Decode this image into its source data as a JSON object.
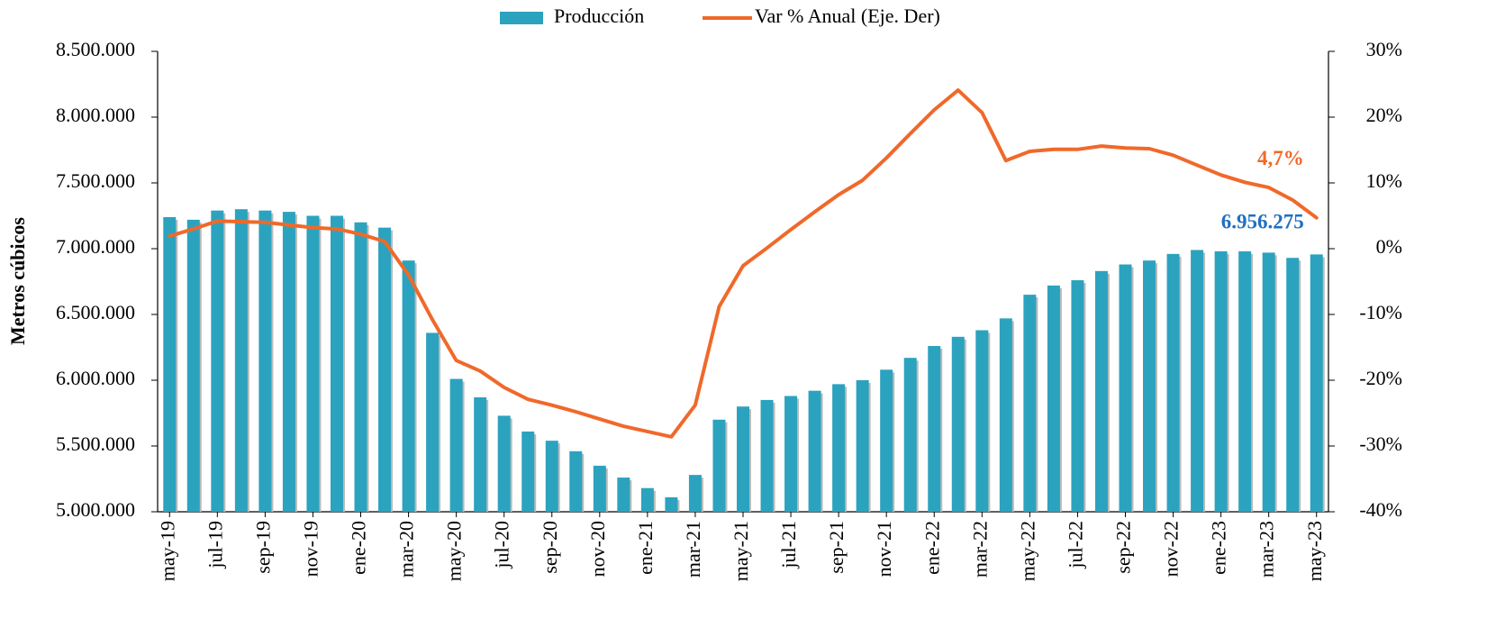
{
  "chart_data": {
    "type": "bar",
    "y_label": "Metros cúbicos",
    "categories": [
      "may-19",
      null,
      "jul-19",
      null,
      "sep-19",
      null,
      "nov-19",
      null,
      "ene-20",
      null,
      "mar-20",
      null,
      "may-20",
      null,
      "jul-20",
      null,
      "sep-20",
      null,
      "nov-20",
      null,
      "ene-21",
      null,
      "mar-21",
      null,
      "may-21",
      null,
      "jul-21",
      null,
      "sep-21",
      null,
      "nov-21",
      null,
      "ene-22",
      null,
      "mar-22",
      null,
      "may-22",
      null,
      "jul-22",
      null,
      "sep-22",
      null,
      "nov-22",
      null,
      "ene-23",
      null,
      "mar-23",
      null,
      "may-23"
    ],
    "series": [
      {
        "name": "Producción",
        "color": "#2ba3bf",
        "values": [
          7240000,
          7220000,
          7290000,
          7300000,
          7290000,
          7280000,
          7250000,
          7250000,
          7200000,
          7160000,
          6910000,
          6360000,
          6010000,
          5870000,
          5730000,
          5610000,
          5540000,
          5460000,
          5350000,
          5260000,
          5180000,
          5110000,
          5280000,
          5700000,
          5800000,
          5850000,
          5880000,
          5920000,
          5970000,
          6000000,
          6080000,
          6170000,
          6260000,
          6330000,
          6380000,
          6470000,
          6650000,
          6720000,
          6760000,
          6830000,
          6880000,
          6910000,
          6960000,
          6990000,
          6980000,
          6980000,
          6970000,
          6930000,
          6956275
        ],
        "value_labels": [
          null,
          null,
          null,
          null,
          null,
          null,
          null,
          null,
          null,
          null,
          null,
          null,
          null,
          null,
          null,
          null,
          null,
          null,
          null,
          null,
          null,
          null,
          null,
          null,
          null,
          null,
          null,
          null,
          null,
          null,
          null,
          null,
          null,
          null,
          null,
          null,
          null,
          null,
          null,
          null,
          null,
          null,
          null,
          null,
          null,
          null,
          null,
          null,
          "6.956.275"
        ],
        "label_color": "#1f70c0"
      },
      {
        "name": "Var % Anual (Eje. Der)",
        "color": "#f0692a",
        "axis": "y2",
        "values": [
          1.9,
          3.0,
          4.2,
          4.1,
          4.0,
          3.6,
          3.2,
          3.0,
          2.2,
          1.1,
          -4.0,
          -10.8,
          -17.0,
          -18.6,
          -21.1,
          -22.9,
          -23.8,
          -24.8,
          -25.9,
          -27.0,
          -27.8,
          -28.6,
          -23.8,
          -8.8,
          -2.6,
          0.1,
          2.9,
          5.6,
          8.2,
          10.4,
          13.8,
          17.5,
          21.1,
          24.1,
          20.7,
          13.4,
          14.8,
          15.1,
          15.1,
          15.6,
          15.3,
          15.2,
          14.2,
          12.7,
          11.2,
          10.1,
          9.3,
          7.4,
          4.7
        ],
        "value_labels": [
          null,
          null,
          null,
          null,
          null,
          null,
          null,
          null,
          null,
          null,
          null,
          null,
          null,
          null,
          null,
          null,
          null,
          null,
          null,
          null,
          null,
          null,
          null,
          null,
          null,
          null,
          null,
          null,
          null,
          null,
          null,
          null,
          null,
          null,
          null,
          null,
          null,
          null,
          null,
          null,
          null,
          null,
          null,
          null,
          null,
          null,
          null,
          null,
          "4,7%"
        ],
        "label_color": "#f0692a"
      }
    ],
    "ylim": [
      5000000,
      8500000
    ],
    "yticks": [
      {
        "value": 5000000,
        "label": "5.000.000"
      },
      {
        "value": 5500000,
        "label": "5.500.000"
      },
      {
        "value": 6000000,
        "label": "6.000.000"
      },
      {
        "value": 6500000,
        "label": "6.500.000"
      },
      {
        "value": 7000000,
        "label": "7.000.000"
      },
      {
        "value": 7500000,
        "label": "7.500.000"
      },
      {
        "value": 8000000,
        "label": "8.000.000"
      },
      {
        "value": 8500000,
        "label": "8.500.000"
      }
    ],
    "y2lim": [
      -40,
      30
    ],
    "y2ticks": [
      {
        "value": -40,
        "label": "-40%"
      },
      {
        "value": -30,
        "label": "-30%"
      },
      {
        "value": -20,
        "label": "-20%"
      },
      {
        "value": -10,
        "label": "-10%"
      },
      {
        "value": 0,
        "label": "0%"
      },
      {
        "value": 10,
        "label": "10%"
      },
      {
        "value": 20,
        "label": "20%"
      },
      {
        "value": 30,
        "label": "30%"
      }
    ],
    "legend": "top",
    "grid": false
  }
}
